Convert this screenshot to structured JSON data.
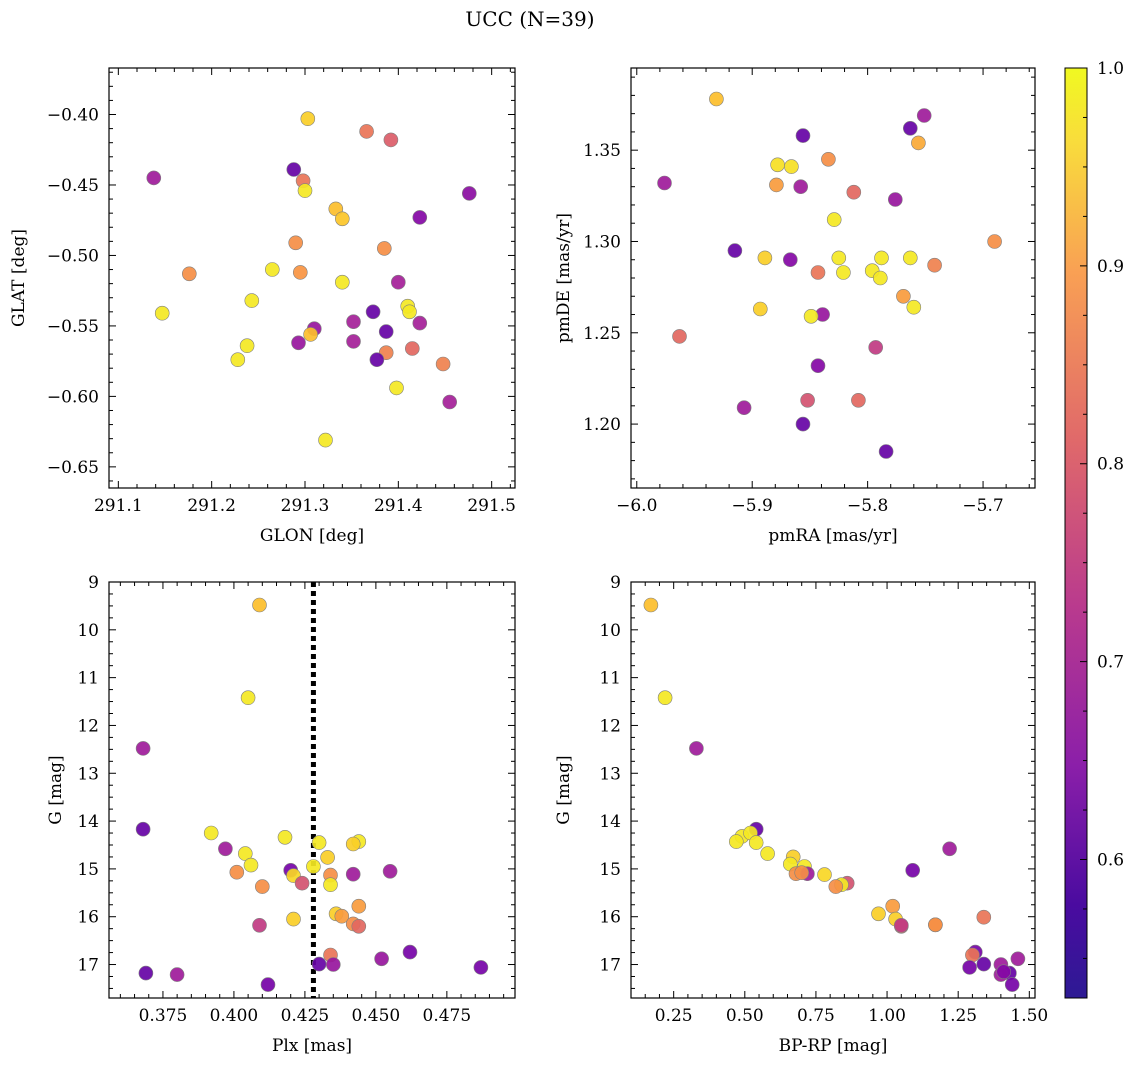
{
  "figure": {
    "title": "UCC (N=39)",
    "colorbar": {
      "colormap": "plasma",
      "range": [
        0.53,
        1.0
      ],
      "ticks": [
        0.6,
        0.7,
        0.8,
        0.9,
        1.0
      ],
      "tick_labels": [
        "0.6",
        "0.7",
        "0.8",
        "0.9",
        "1.0"
      ]
    },
    "marker_edge_color": "#808080"
  },
  "chart_data": [
    {
      "id": "glon-glat",
      "type": "scatter",
      "title": "",
      "xlabel": "GLON [deg]",
      "ylabel": "GLAT [deg]",
      "xlim": [
        291.09,
        291.525
      ],
      "ylim": [
        -0.665,
        -0.367
      ],
      "xticks": [
        291.1,
        291.2,
        291.3,
        291.4,
        291.5
      ],
      "xtick_labels": [
        "291.1",
        "291.2",
        "291.3",
        "291.4",
        "291.5"
      ],
      "yticks": [
        -0.4,
        -0.45,
        -0.5,
        -0.55,
        -0.6,
        -0.65
      ],
      "ytick_labels": [
        "−0.40",
        "−0.45",
        "−0.50",
        "−0.55",
        "−0.60",
        "−0.65"
      ],
      "grid": false,
      "points": [
        {
          "x": 291.303,
          "y": -0.403,
          "c": 0.95
        },
        {
          "x": 291.366,
          "y": -0.412,
          "c": 0.82
        },
        {
          "x": 291.392,
          "y": -0.418,
          "c": 0.78
        },
        {
          "x": 291.288,
          "y": -0.439,
          "c": 0.58
        },
        {
          "x": 291.138,
          "y": -0.445,
          "c": 0.66
        },
        {
          "x": 291.298,
          "y": -0.447,
          "c": 0.82
        },
        {
          "x": 291.3,
          "y": -0.454,
          "c": 0.98
        },
        {
          "x": 291.476,
          "y": -0.456,
          "c": 0.63
        },
        {
          "x": 291.333,
          "y": -0.467,
          "c": 0.93
        },
        {
          "x": 291.34,
          "y": -0.474,
          "c": 0.94
        },
        {
          "x": 291.423,
          "y": -0.473,
          "c": 0.62
        },
        {
          "x": 291.29,
          "y": -0.491,
          "c": 0.86
        },
        {
          "x": 291.385,
          "y": -0.495,
          "c": 0.86
        },
        {
          "x": 291.265,
          "y": -0.51,
          "c": 0.98
        },
        {
          "x": 291.295,
          "y": -0.512,
          "c": 0.87
        },
        {
          "x": 291.176,
          "y": -0.513,
          "c": 0.86
        },
        {
          "x": 291.34,
          "y": -0.519,
          "c": 0.98
        },
        {
          "x": 291.4,
          "y": -0.519,
          "c": 0.67
        },
        {
          "x": 291.243,
          "y": -0.532,
          "c": 0.98
        },
        {
          "x": 291.41,
          "y": -0.536,
          "c": 0.98
        },
        {
          "x": 291.412,
          "y": -0.54,
          "c": 0.98
        },
        {
          "x": 291.373,
          "y": -0.54,
          "c": 0.58
        },
        {
          "x": 291.147,
          "y": -0.541,
          "c": 0.98
        },
        {
          "x": 291.352,
          "y": -0.547,
          "c": 0.67
        },
        {
          "x": 291.423,
          "y": -0.548,
          "c": 0.67
        },
        {
          "x": 291.31,
          "y": -0.552,
          "c": 0.65
        },
        {
          "x": 291.387,
          "y": -0.554,
          "c": 0.58
        },
        {
          "x": 291.306,
          "y": -0.556,
          "c": 0.93
        },
        {
          "x": 291.352,
          "y": -0.561,
          "c": 0.67
        },
        {
          "x": 291.293,
          "y": -0.562,
          "c": 0.65
        },
        {
          "x": 291.238,
          "y": -0.564,
          "c": 0.98
        },
        {
          "x": 291.415,
          "y": -0.566,
          "c": 0.8
        },
        {
          "x": 291.387,
          "y": -0.569,
          "c": 0.84
        },
        {
          "x": 291.228,
          "y": -0.574,
          "c": 0.98
        },
        {
          "x": 291.377,
          "y": -0.574,
          "c": 0.58
        },
        {
          "x": 291.448,
          "y": -0.577,
          "c": 0.84
        },
        {
          "x": 291.398,
          "y": -0.594,
          "c": 0.98
        },
        {
          "x": 291.455,
          "y": -0.604,
          "c": 0.67
        },
        {
          "x": 291.322,
          "y": -0.631,
          "c": 0.98
        }
      ]
    },
    {
      "id": "pm",
      "type": "scatter",
      "title": "",
      "xlabel": "pmRA [mas/yr]",
      "ylabel": "pmDE [mas/yr]",
      "xlim": [
        -6.005,
        -5.655
      ],
      "ylim": [
        1.165,
        1.395
      ],
      "xticks": [
        -6.0,
        -5.9,
        -5.8,
        -5.7
      ],
      "xtick_labels": [
        "−6.0",
        "−5.9",
        "−5.8",
        "−5.7"
      ],
      "yticks": [
        1.2,
        1.25,
        1.3,
        1.35
      ],
      "ytick_labels": [
        "1.20",
        "1.25",
        "1.30",
        "1.35"
      ],
      "grid": false,
      "points": [
        {
          "x": -5.931,
          "y": 1.378,
          "c": 0.93
        },
        {
          "x": -5.751,
          "y": 1.369,
          "c": 0.66
        },
        {
          "x": -5.763,
          "y": 1.362,
          "c": 0.58
        },
        {
          "x": -5.856,
          "y": 1.358,
          "c": 0.58
        },
        {
          "x": -5.756,
          "y": 1.354,
          "c": 0.9
        },
        {
          "x": -5.834,
          "y": 1.345,
          "c": 0.86
        },
        {
          "x": -5.878,
          "y": 1.342,
          "c": 0.97
        },
        {
          "x": -5.866,
          "y": 1.341,
          "c": 0.97
        },
        {
          "x": -5.976,
          "y": 1.332,
          "c": 0.66
        },
        {
          "x": -5.879,
          "y": 1.331,
          "c": 0.88
        },
        {
          "x": -5.858,
          "y": 1.33,
          "c": 0.66
        },
        {
          "x": -5.812,
          "y": 1.327,
          "c": 0.8
        },
        {
          "x": -5.776,
          "y": 1.323,
          "c": 0.65
        },
        {
          "x": -5.829,
          "y": 1.312,
          "c": 0.98
        },
        {
          "x": -5.69,
          "y": 1.3,
          "c": 0.86
        },
        {
          "x": -5.915,
          "y": 1.295,
          "c": 0.58
        },
        {
          "x": -5.889,
          "y": 1.291,
          "c": 0.95
        },
        {
          "x": -5.825,
          "y": 1.291,
          "c": 0.98
        },
        {
          "x": -5.788,
          "y": 1.291,
          "c": 0.98
        },
        {
          "x": -5.763,
          "y": 1.291,
          "c": 0.98
        },
        {
          "x": -5.867,
          "y": 1.29,
          "c": 0.62
        },
        {
          "x": -5.742,
          "y": 1.287,
          "c": 0.84
        },
        {
          "x": -5.796,
          "y": 1.284,
          "c": 0.98
        },
        {
          "x": -5.843,
          "y": 1.283,
          "c": 0.82
        },
        {
          "x": -5.821,
          "y": 1.283,
          "c": 0.98
        },
        {
          "x": -5.789,
          "y": 1.28,
          "c": 0.98
        },
        {
          "x": -5.769,
          "y": 1.27,
          "c": 0.88
        },
        {
          "x": -5.76,
          "y": 1.264,
          "c": 0.98
        },
        {
          "x": -5.893,
          "y": 1.263,
          "c": 0.95
        },
        {
          "x": -5.839,
          "y": 1.26,
          "c": 0.65
        },
        {
          "x": -5.849,
          "y": 1.259,
          "c": 0.98
        },
        {
          "x": -5.963,
          "y": 1.248,
          "c": 0.8
        },
        {
          "x": -5.793,
          "y": 1.242,
          "c": 0.72
        },
        {
          "x": -5.843,
          "y": 1.232,
          "c": 0.62
        },
        {
          "x": -5.852,
          "y": 1.213,
          "c": 0.76
        },
        {
          "x": -5.808,
          "y": 1.213,
          "c": 0.8
        },
        {
          "x": -5.907,
          "y": 1.209,
          "c": 0.66
        },
        {
          "x": -5.856,
          "y": 1.2,
          "c": 0.58
        },
        {
          "x": -5.784,
          "y": 1.185,
          "c": 0.58
        }
      ]
    },
    {
      "id": "plx-g",
      "type": "scatter",
      "title": "",
      "xlabel": "Plx [mas]",
      "ylabel": "G [mag]",
      "xlim": [
        0.356,
        0.499
      ],
      "ylim": [
        17.7,
        9.0
      ],
      "y_inverted": true,
      "xticks": [
        0.375,
        0.4,
        0.425,
        0.45,
        0.475
      ],
      "xtick_labels": [
        "0.375",
        "0.400",
        "0.425",
        "0.450",
        "0.475"
      ],
      "yticks": [
        9,
        10,
        11,
        12,
        13,
        14,
        15,
        16,
        17
      ],
      "ytick_labels": [
        "9",
        "10",
        "11",
        "12",
        "13",
        "14",
        "15",
        "16",
        "17"
      ],
      "grid": false,
      "vline": {
        "x": 0.428,
        "style": "dotted",
        "color": "#000000"
      },
      "points": [
        {
          "x": 0.409,
          "y": 9.48,
          "c": 0.93
        },
        {
          "x": 0.405,
          "y": 11.42,
          "c": 0.98
        },
        {
          "x": 0.368,
          "y": 12.48,
          "c": 0.66
        },
        {
          "x": 0.368,
          "y": 14.17,
          "c": 0.58
        },
        {
          "x": 0.392,
          "y": 14.25,
          "c": 0.98
        },
        {
          "x": 0.418,
          "y": 14.34,
          "c": 0.98
        },
        {
          "x": 0.444,
          "y": 14.43,
          "c": 0.98
        },
        {
          "x": 0.43,
          "y": 14.45,
          "c": 0.98
        },
        {
          "x": 0.442,
          "y": 14.48,
          "c": 0.95
        },
        {
          "x": 0.397,
          "y": 14.58,
          "c": 0.66
        },
        {
          "x": 0.404,
          "y": 14.68,
          "c": 0.98
        },
        {
          "x": 0.433,
          "y": 14.76,
          "c": 0.95
        },
        {
          "x": 0.406,
          "y": 14.92,
          "c": 0.98
        },
        {
          "x": 0.428,
          "y": 14.95,
          "c": 0.98
        },
        {
          "x": 0.42,
          "y": 15.03,
          "c": 0.6
        },
        {
          "x": 0.455,
          "y": 15.05,
          "c": 0.66
        },
        {
          "x": 0.401,
          "y": 15.07,
          "c": 0.86
        },
        {
          "x": 0.442,
          "y": 15.11,
          "c": 0.66
        },
        {
          "x": 0.434,
          "y": 15.13,
          "c": 0.86
        },
        {
          "x": 0.421,
          "y": 15.14,
          "c": 0.96
        },
        {
          "x": 0.424,
          "y": 15.3,
          "c": 0.76
        },
        {
          "x": 0.434,
          "y": 15.33,
          "c": 0.98
        },
        {
          "x": 0.41,
          "y": 15.37,
          "c": 0.86
        },
        {
          "x": 0.444,
          "y": 15.78,
          "c": 0.88
        },
        {
          "x": 0.436,
          "y": 15.94,
          "c": 0.95
        },
        {
          "x": 0.438,
          "y": 15.99,
          "c": 0.88
        },
        {
          "x": 0.421,
          "y": 16.05,
          "c": 0.95
        },
        {
          "x": 0.442,
          "y": 16.15,
          "c": 0.86
        },
        {
          "x": 0.444,
          "y": 16.2,
          "c": 0.8
        },
        {
          "x": 0.409,
          "y": 16.18,
          "c": 0.72
        },
        {
          "x": 0.434,
          "y": 16.8,
          "c": 0.82
        },
        {
          "x": 0.462,
          "y": 16.74,
          "c": 0.6
        },
        {
          "x": 0.452,
          "y": 16.88,
          "c": 0.65
        },
        {
          "x": 0.43,
          "y": 16.99,
          "c": 0.58
        },
        {
          "x": 0.435,
          "y": 17.0,
          "c": 0.65
        },
        {
          "x": 0.487,
          "y": 17.06,
          "c": 0.6
        },
        {
          "x": 0.369,
          "y": 17.18,
          "c": 0.58
        },
        {
          "x": 0.38,
          "y": 17.21,
          "c": 0.66
        },
        {
          "x": 0.412,
          "y": 17.42,
          "c": 0.6
        }
      ]
    },
    {
      "id": "cmd",
      "type": "scatter",
      "title": "",
      "xlabel": "BP-RP [mag]",
      "ylabel": "G [mag]",
      "xlim": [
        0.1,
        1.52
      ],
      "ylim": [
        17.7,
        9.0
      ],
      "y_inverted": true,
      "xticks": [
        0.25,
        0.5,
        0.75,
        1.0,
        1.25,
        1.5
      ],
      "xtick_labels": [
        "0.25",
        "0.50",
        "0.75",
        "1.00",
        "1.25",
        "1.50"
      ],
      "yticks": [
        9,
        10,
        11,
        12,
        13,
        14,
        15,
        16,
        17
      ],
      "ytick_labels": [
        "9",
        "10",
        "11",
        "12",
        "13",
        "14",
        "15",
        "16",
        "17"
      ],
      "grid": false,
      "points": [
        {
          "x": 0.17,
          "y": 9.48,
          "c": 0.93
        },
        {
          "x": 0.22,
          "y": 11.42,
          "c": 0.98
        },
        {
          "x": 0.33,
          "y": 12.48,
          "c": 0.66
        },
        {
          "x": 0.54,
          "y": 14.17,
          "c": 0.58
        },
        {
          "x": 0.49,
          "y": 14.32,
          "c": 0.98
        },
        {
          "x": 0.52,
          "y": 14.25,
          "c": 0.98
        },
        {
          "x": 0.47,
          "y": 14.43,
          "c": 0.98
        },
        {
          "x": 0.54,
          "y": 14.45,
          "c": 0.98
        },
        {
          "x": 1.22,
          "y": 14.58,
          "c": 0.66
        },
        {
          "x": 0.58,
          "y": 14.68,
          "c": 0.98
        },
        {
          "x": 0.67,
          "y": 14.75,
          "c": 0.95
        },
        {
          "x": 0.66,
          "y": 14.9,
          "c": 0.98
        },
        {
          "x": 0.71,
          "y": 14.95,
          "c": 0.98
        },
        {
          "x": 1.09,
          "y": 15.03,
          "c": 0.6
        },
        {
          "x": 0.68,
          "y": 15.1,
          "c": 0.86
        },
        {
          "x": 0.72,
          "y": 15.1,
          "c": 0.66
        },
        {
          "x": 0.78,
          "y": 15.12,
          "c": 0.96
        },
        {
          "x": 0.7,
          "y": 15.08,
          "c": 0.86
        },
        {
          "x": 0.86,
          "y": 15.3,
          "c": 0.76
        },
        {
          "x": 0.84,
          "y": 15.33,
          "c": 0.98
        },
        {
          "x": 0.82,
          "y": 15.37,
          "c": 0.86
        },
        {
          "x": 1.02,
          "y": 15.78,
          "c": 0.88
        },
        {
          "x": 0.97,
          "y": 15.94,
          "c": 0.95
        },
        {
          "x": 1.34,
          "y": 16.01,
          "c": 0.82
        },
        {
          "x": 1.03,
          "y": 16.05,
          "c": 0.95
        },
        {
          "x": 1.17,
          "y": 16.17,
          "c": 0.88
        },
        {
          "x": 1.17,
          "y": 16.17,
          "c": 0.86
        },
        {
          "x": 1.05,
          "y": 16.2,
          "c": 0.8
        },
        {
          "x": 1.31,
          "y": 16.74,
          "c": 0.6
        },
        {
          "x": 1.3,
          "y": 16.8,
          "c": 0.82
        },
        {
          "x": 1.46,
          "y": 16.88,
          "c": 0.66
        },
        {
          "x": 1.34,
          "y": 16.99,
          "c": 0.58
        },
        {
          "x": 1.4,
          "y": 17.0,
          "c": 0.66
        },
        {
          "x": 1.29,
          "y": 17.06,
          "c": 0.6
        },
        {
          "x": 1.43,
          "y": 17.18,
          "c": 0.58
        },
        {
          "x": 1.4,
          "y": 17.21,
          "c": 0.66
        },
        {
          "x": 1.44,
          "y": 17.42,
          "c": 0.6
        },
        {
          "x": 1.41,
          "y": 17.15,
          "c": 0.62
        },
        {
          "x": 1.05,
          "y": 16.18,
          "c": 0.72
        }
      ]
    }
  ]
}
